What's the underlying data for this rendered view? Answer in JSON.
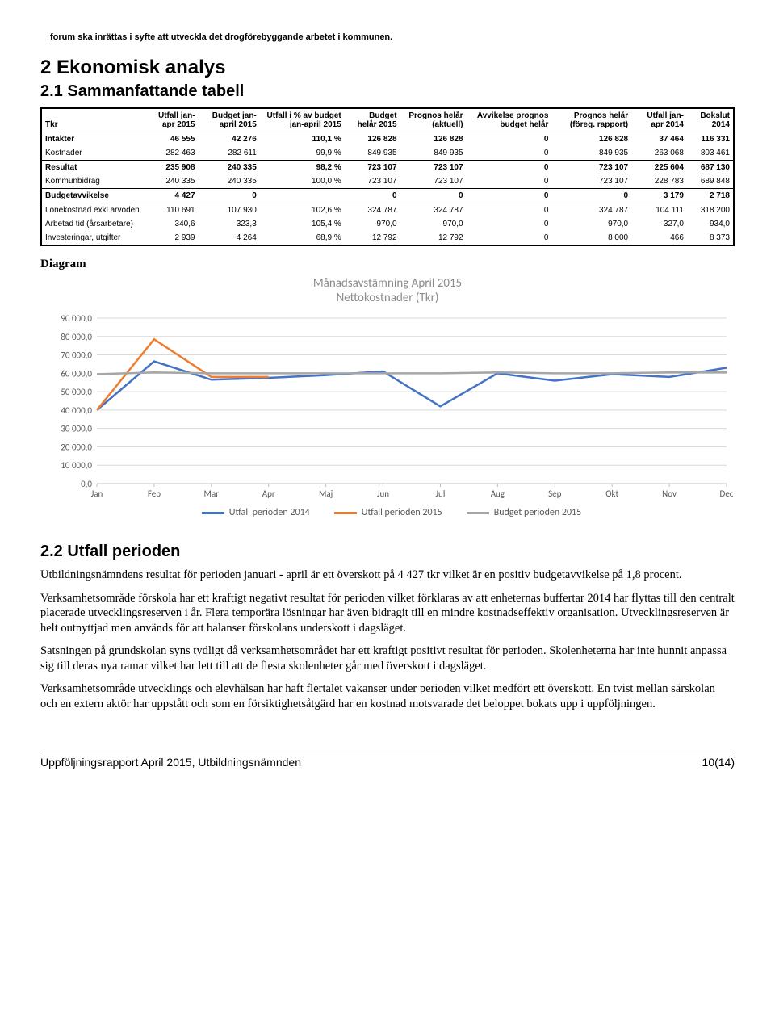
{
  "note": "forum ska inrättas i syfte att utveckla det drogförebyggande arbetet i kommunen.",
  "h1": "2 Ekonomisk analys",
  "h2_1": "2.1 Sammanfattande tabell",
  "table": {
    "headers": [
      "Tkr",
      "Utfall jan-apr 2015",
      "Budget jan-april 2015",
      "Utfall i % av budget jan-april 2015",
      "Budget helår 2015",
      "Prognos helår (aktuell)",
      "Avvikelse prognos budget helår",
      "Prognos helår (föreg. rapport)",
      "Utfall jan-apr 2014",
      "Bokslut 2014"
    ],
    "rows": [
      {
        "bold": true,
        "rule": false,
        "cells": [
          "Intäkter",
          "46 555",
          "42 276",
          "110,1 %",
          "126 828",
          "126 828",
          "0",
          "126 828",
          "37 464",
          "116 331"
        ]
      },
      {
        "bold": false,
        "rule": true,
        "cells": [
          "Kostnader",
          "282 463",
          "282 611",
          "99,9 %",
          "849 935",
          "849 935",
          "0",
          "849 935",
          "263 068",
          "803 461"
        ]
      },
      {
        "bold": true,
        "rule": false,
        "cells": [
          "Resultat",
          "235 908",
          "240 335",
          "98,2 %",
          "723 107",
          "723 107",
          "0",
          "723 107",
          "225 604",
          "687 130"
        ]
      },
      {
        "bold": false,
        "rule": true,
        "cells": [
          "Kommunbidrag",
          "240 335",
          "240 335",
          "100,0 %",
          "723 107",
          "723 107",
          "0",
          "723 107",
          "228 783",
          "689 848"
        ]
      },
      {
        "bold": true,
        "rule": true,
        "cells": [
          "Budgetavvikelse",
          "4 427",
          "0",
          "",
          "0",
          "0",
          "0",
          "0",
          "3 179",
          "2 718"
        ]
      },
      {
        "bold": false,
        "rule": false,
        "cells": [
          "Lönekostnad exkl arvoden",
          "110 691",
          "107 930",
          "102,6 %",
          "324 787",
          "324 787",
          "0",
          "324 787",
          "104 111",
          "318 200"
        ]
      },
      {
        "bold": false,
        "rule": false,
        "cells": [
          "Arbetad tid (årsarbetare)",
          "340,6",
          "323,3",
          "105,4 %",
          "970,0",
          "970,0",
          "0",
          "970,0",
          "327,0",
          "934,0"
        ]
      },
      {
        "bold": false,
        "rule": false,
        "cells": [
          "Investeringar, utgifter",
          "2 939",
          "4 264",
          "68,9 %",
          "12 792",
          "12 792",
          "0",
          "8 000",
          "466",
          "8 373"
        ]
      }
    ]
  },
  "diagram_label": "Diagram",
  "chart": {
    "type": "line",
    "title_line1": "Månadsavstämning April 2015",
    "title_line2": "Nettokostnader (Tkr)",
    "title_color": "#8b8b8b",
    "title_fontsize": 15,
    "categories": [
      "Jan",
      "Feb",
      "Mar",
      "Apr",
      "Maj",
      "Jun",
      "Jul",
      "Aug",
      "Sep",
      "Okt",
      "Nov",
      "Dec"
    ],
    "ylim": [
      0,
      90000
    ],
    "ytick_step": 10000,
    "ytick_labels": [
      "0,0",
      "10 000,0",
      "20 000,0",
      "30 000,0",
      "40 000,0",
      "50 000,0",
      "60 000,0",
      "70 000,0",
      "80 000,0",
      "90 000,0"
    ],
    "grid_color": "#d9d9d9",
    "axis_color": "#bfbfbf",
    "axis_label_color": "#595959",
    "axis_fontsize": 11,
    "line_width": 2.5,
    "series": [
      {
        "name": "Utfall perioden 2014",
        "color": "#4472c4",
        "values": [
          40000,
          66500,
          56500,
          57500,
          59000,
          61000,
          42000,
          60000,
          56000,
          59500,
          58000,
          63000
        ]
      },
      {
        "name": "Utfall perioden 2015",
        "color": "#ed7d31",
        "values": [
          40000,
          78500,
          58000,
          58000,
          null,
          null,
          null,
          null,
          null,
          null,
          null,
          null
        ]
      },
      {
        "name": "Budget perioden 2015",
        "color": "#a6a6a6",
        "values": [
          59500,
          60500,
          60000,
          60000,
          60000,
          60000,
          60000,
          60500,
          60000,
          60000,
          60500,
          60500
        ]
      }
    ]
  },
  "h2_2": "2.2 Utfall perioden",
  "paragraphs": [
    "Utbildningsnämndens resultat för perioden januari - april är ett överskott på 4 427 tkr vilket är en positiv budgetavvikelse på 1,8 procent.",
    "Verksamhetsområde förskola har ett kraftigt negativt resultat för perioden vilket förklaras av att enheternas buffertar 2014 har flyttas till den centralt placerade utvecklingsreserven i år. Flera temporära lösningar har även bidragit till en mindre kostnadseffektiv organisation. Utvecklingsreserven är helt outnyttjad men används för att balanser förskolans underskott i dagsläget.",
    "Satsningen på grundskolan syns tydligt då verksamhetsområdet har ett kraftigt positivt resultat för perioden. Skolenheterna har inte hunnit anpassa sig till deras nya ramar vilket har lett till att de flesta skolenheter går med överskott i dagsläget.",
    "Verksamhetsområde utvecklings och elevhälsan har haft flertalet vakanser under perioden vilket medfört ett överskott. En tvist mellan särskolan och en extern aktör har uppstått och som en försiktighetsåtgärd har en kostnad motsvarade det beloppet bokats upp i uppföljningen."
  ],
  "footer_left": "Uppföljningsrapport April 2015, Utbildningsnämnden",
  "footer_right": "10(14)"
}
